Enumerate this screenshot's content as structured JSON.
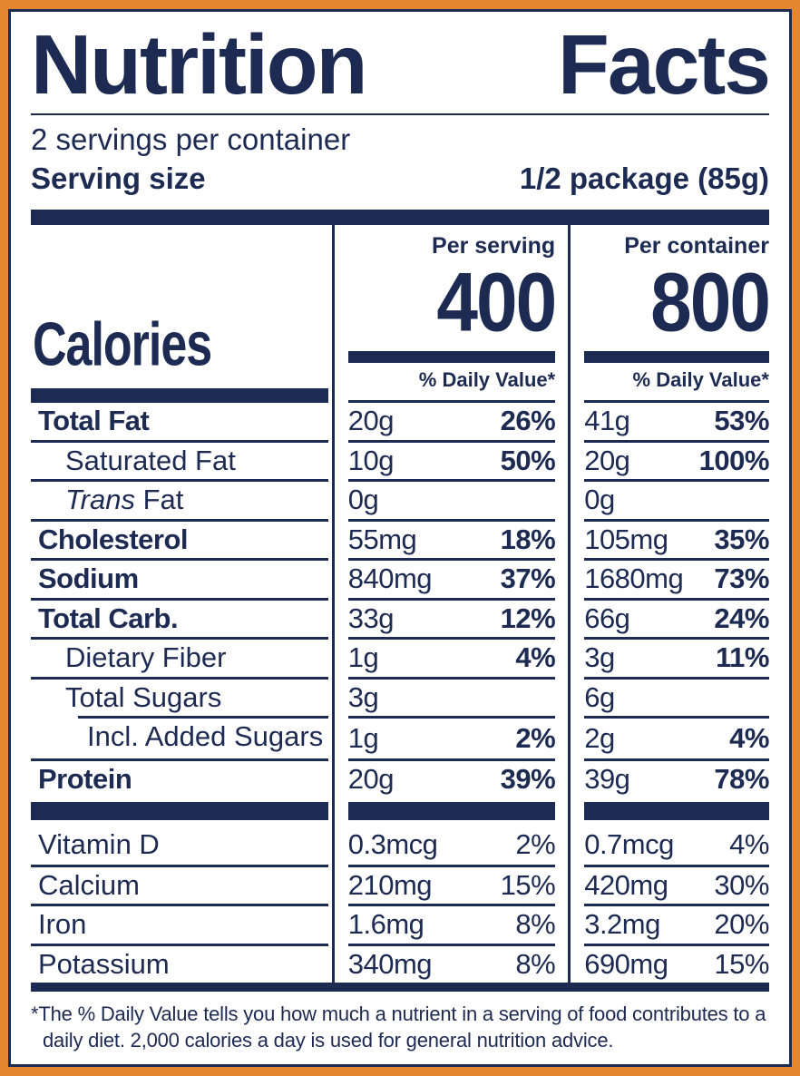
{
  "label": {
    "title_word1": "Nutrition",
    "title_word2": "Facts",
    "servings_per_container": "2 servings per container",
    "serving_size_label": "Serving size",
    "serving_size_value": "1/2 package (85g)",
    "calories": {
      "label": "Calories",
      "serving_column_header": "Per serving",
      "container_column_header": "Per container",
      "per_serving_value": "400",
      "per_container_value": "800",
      "daily_value_header": "% Daily Value*"
    },
    "table": {
      "rows": [
        {
          "id": "total-fat",
          "name": "Total Fat",
          "bold": true,
          "indent": 0,
          "serving_amount": "20g",
          "serving_dv": "26%",
          "container_amount": "41g",
          "container_dv": "53%",
          "dv_bold": true,
          "group": "main"
        },
        {
          "id": "saturated-fat",
          "name": "Saturated Fat",
          "bold": false,
          "indent": 1,
          "serving_amount": "10g",
          "serving_dv": "50%",
          "container_amount": "20g",
          "container_dv": "100%",
          "dv_bold": true,
          "group": "main"
        },
        {
          "id": "trans-fat",
          "name_italic": "Trans",
          "name": " Fat",
          "bold": false,
          "indent": 1,
          "serving_amount": "0g",
          "serving_dv": "",
          "container_amount": "0g",
          "container_dv": "",
          "dv_bold": false,
          "group": "main"
        },
        {
          "id": "cholesterol",
          "name": "Cholesterol",
          "bold": true,
          "indent": 0,
          "serving_amount": "55mg",
          "serving_dv": "18%",
          "container_amount": "105mg",
          "container_dv": "35%",
          "dv_bold": true,
          "group": "main"
        },
        {
          "id": "sodium",
          "name": "Sodium",
          "bold": true,
          "indent": 0,
          "serving_amount": "840mg",
          "serving_dv": "37%",
          "container_amount": "1680mg",
          "container_dv": "73%",
          "dv_bold": true,
          "group": "main"
        },
        {
          "id": "total-carb",
          "name": "Total Carb.",
          "bold": true,
          "indent": 0,
          "serving_amount": "33g",
          "serving_dv": "12%",
          "container_amount": "66g",
          "container_dv": "24%",
          "dv_bold": true,
          "group": "main"
        },
        {
          "id": "dietary-fiber",
          "name": "Dietary Fiber",
          "bold": false,
          "indent": 1,
          "serving_amount": "1g",
          "serving_dv": "4%",
          "container_amount": "3g",
          "container_dv": "11%",
          "dv_bold": true,
          "group": "main"
        },
        {
          "id": "total-sugars",
          "name": "Total Sugars",
          "bold": false,
          "indent": 1,
          "serving_amount": "3g",
          "serving_dv": "",
          "container_amount": "6g",
          "container_dv": "",
          "dv_bold": false,
          "group": "main"
        },
        {
          "id": "added-sugars",
          "name": "Incl. Added Sugars",
          "bold": false,
          "indent": 2,
          "sep_indent": true,
          "serving_amount": "1g",
          "serving_dv": "2%",
          "container_amount": "2g",
          "container_dv": "4%",
          "dv_bold": true,
          "group": "main"
        },
        {
          "id": "protein",
          "name": "Protein",
          "bold": true,
          "indent": 0,
          "serving_amount": "20g",
          "serving_dv": "39%",
          "container_amount": "39g",
          "container_dv": "78%",
          "dv_bold": true,
          "group": "main"
        },
        {
          "id": "vitamin-d",
          "name": "Vitamin D",
          "bold": false,
          "indent": 0,
          "serving_amount": "0.3mcg",
          "serving_dv": "2%",
          "container_amount": "0.7mcg",
          "container_dv": "4%",
          "dv_bold": false,
          "group": "vitamins"
        },
        {
          "id": "calcium",
          "name": "Calcium",
          "bold": false,
          "indent": 0,
          "serving_amount": "210mg",
          "serving_dv": "15%",
          "container_amount": "420mg",
          "container_dv": "30%",
          "dv_bold": false,
          "group": "vitamins"
        },
        {
          "id": "iron",
          "name": "Iron",
          "bold": false,
          "indent": 0,
          "serving_amount": "1.6mg",
          "serving_dv": "8%",
          "container_amount": "3.2mg",
          "container_dv": "20%",
          "dv_bold": false,
          "group": "vitamins"
        },
        {
          "id": "potassium",
          "name": "Potassium",
          "bold": false,
          "indent": 0,
          "serving_amount": "340mg",
          "serving_dv": "8%",
          "container_amount": "690mg",
          "container_dv": "15%",
          "dv_bold": false,
          "group": "vitamins"
        }
      ]
    },
    "footnote": "*The % Daily Value tells you how much a nutrient in a serving of food contributes to a daily diet. 2,000 calories a day is used for general nutrition advice.",
    "colors": {
      "navy": "#1d2a52",
      "orange": "#e6862f",
      "background": "#ffffff"
    }
  }
}
